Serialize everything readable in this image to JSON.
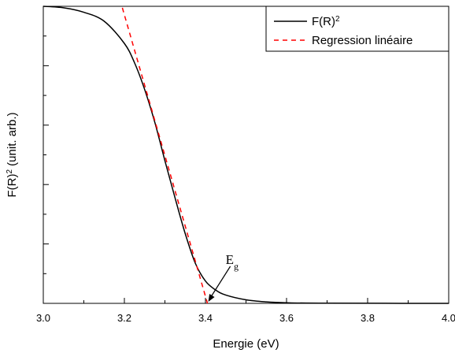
{
  "chart_data": {
    "type": "line",
    "xlabel": "Energie (eV)",
    "ylabel": "F(R)",
    "ylabel_sup": "2",
    "ylabel_suffix": " (unit. arb.)",
    "xlim": [
      3.0,
      4.0
    ],
    "ylim": [
      0,
      1
    ],
    "xticks": [
      "3.0",
      "3.2",
      "3.4",
      "3.6",
      "3.8",
      "4.0"
    ],
    "xtick_values": [
      3.0,
      3.2,
      3.4,
      3.6,
      3.8,
      4.0
    ],
    "ytick_values": [
      0,
      0.2,
      0.4,
      0.6,
      0.8,
      1.0
    ],
    "grid": false,
    "legend_position": "top-right",
    "series": [
      {
        "name": "F(R)",
        "name_sup": "2",
        "style": "solid",
        "color": "#000000",
        "x": [
          3.0,
          3.05,
          3.1,
          3.15,
          3.2,
          3.225,
          3.25,
          3.275,
          3.3,
          3.325,
          3.35,
          3.375,
          3.4,
          3.425,
          3.45,
          3.5,
          3.55,
          3.6,
          3.7,
          4.0
        ],
        "y": [
          1.0,
          0.995,
          0.98,
          0.95,
          0.875,
          0.81,
          0.72,
          0.61,
          0.48,
          0.355,
          0.235,
          0.135,
          0.075,
          0.045,
          0.028,
          0.012,
          0.005,
          0.002,
          0.0005,
          0.0
        ]
      },
      {
        "name": "Regression linéaire",
        "style": "dashed",
        "color": "#ff0000",
        "x": [
          3.195,
          3.405
        ],
        "y": [
          0.995,
          0.0
        ]
      }
    ],
    "annotations": [
      {
        "text": "E",
        "sub": "g",
        "x": 3.405,
        "y": 0.0,
        "arrow": true
      }
    ]
  }
}
